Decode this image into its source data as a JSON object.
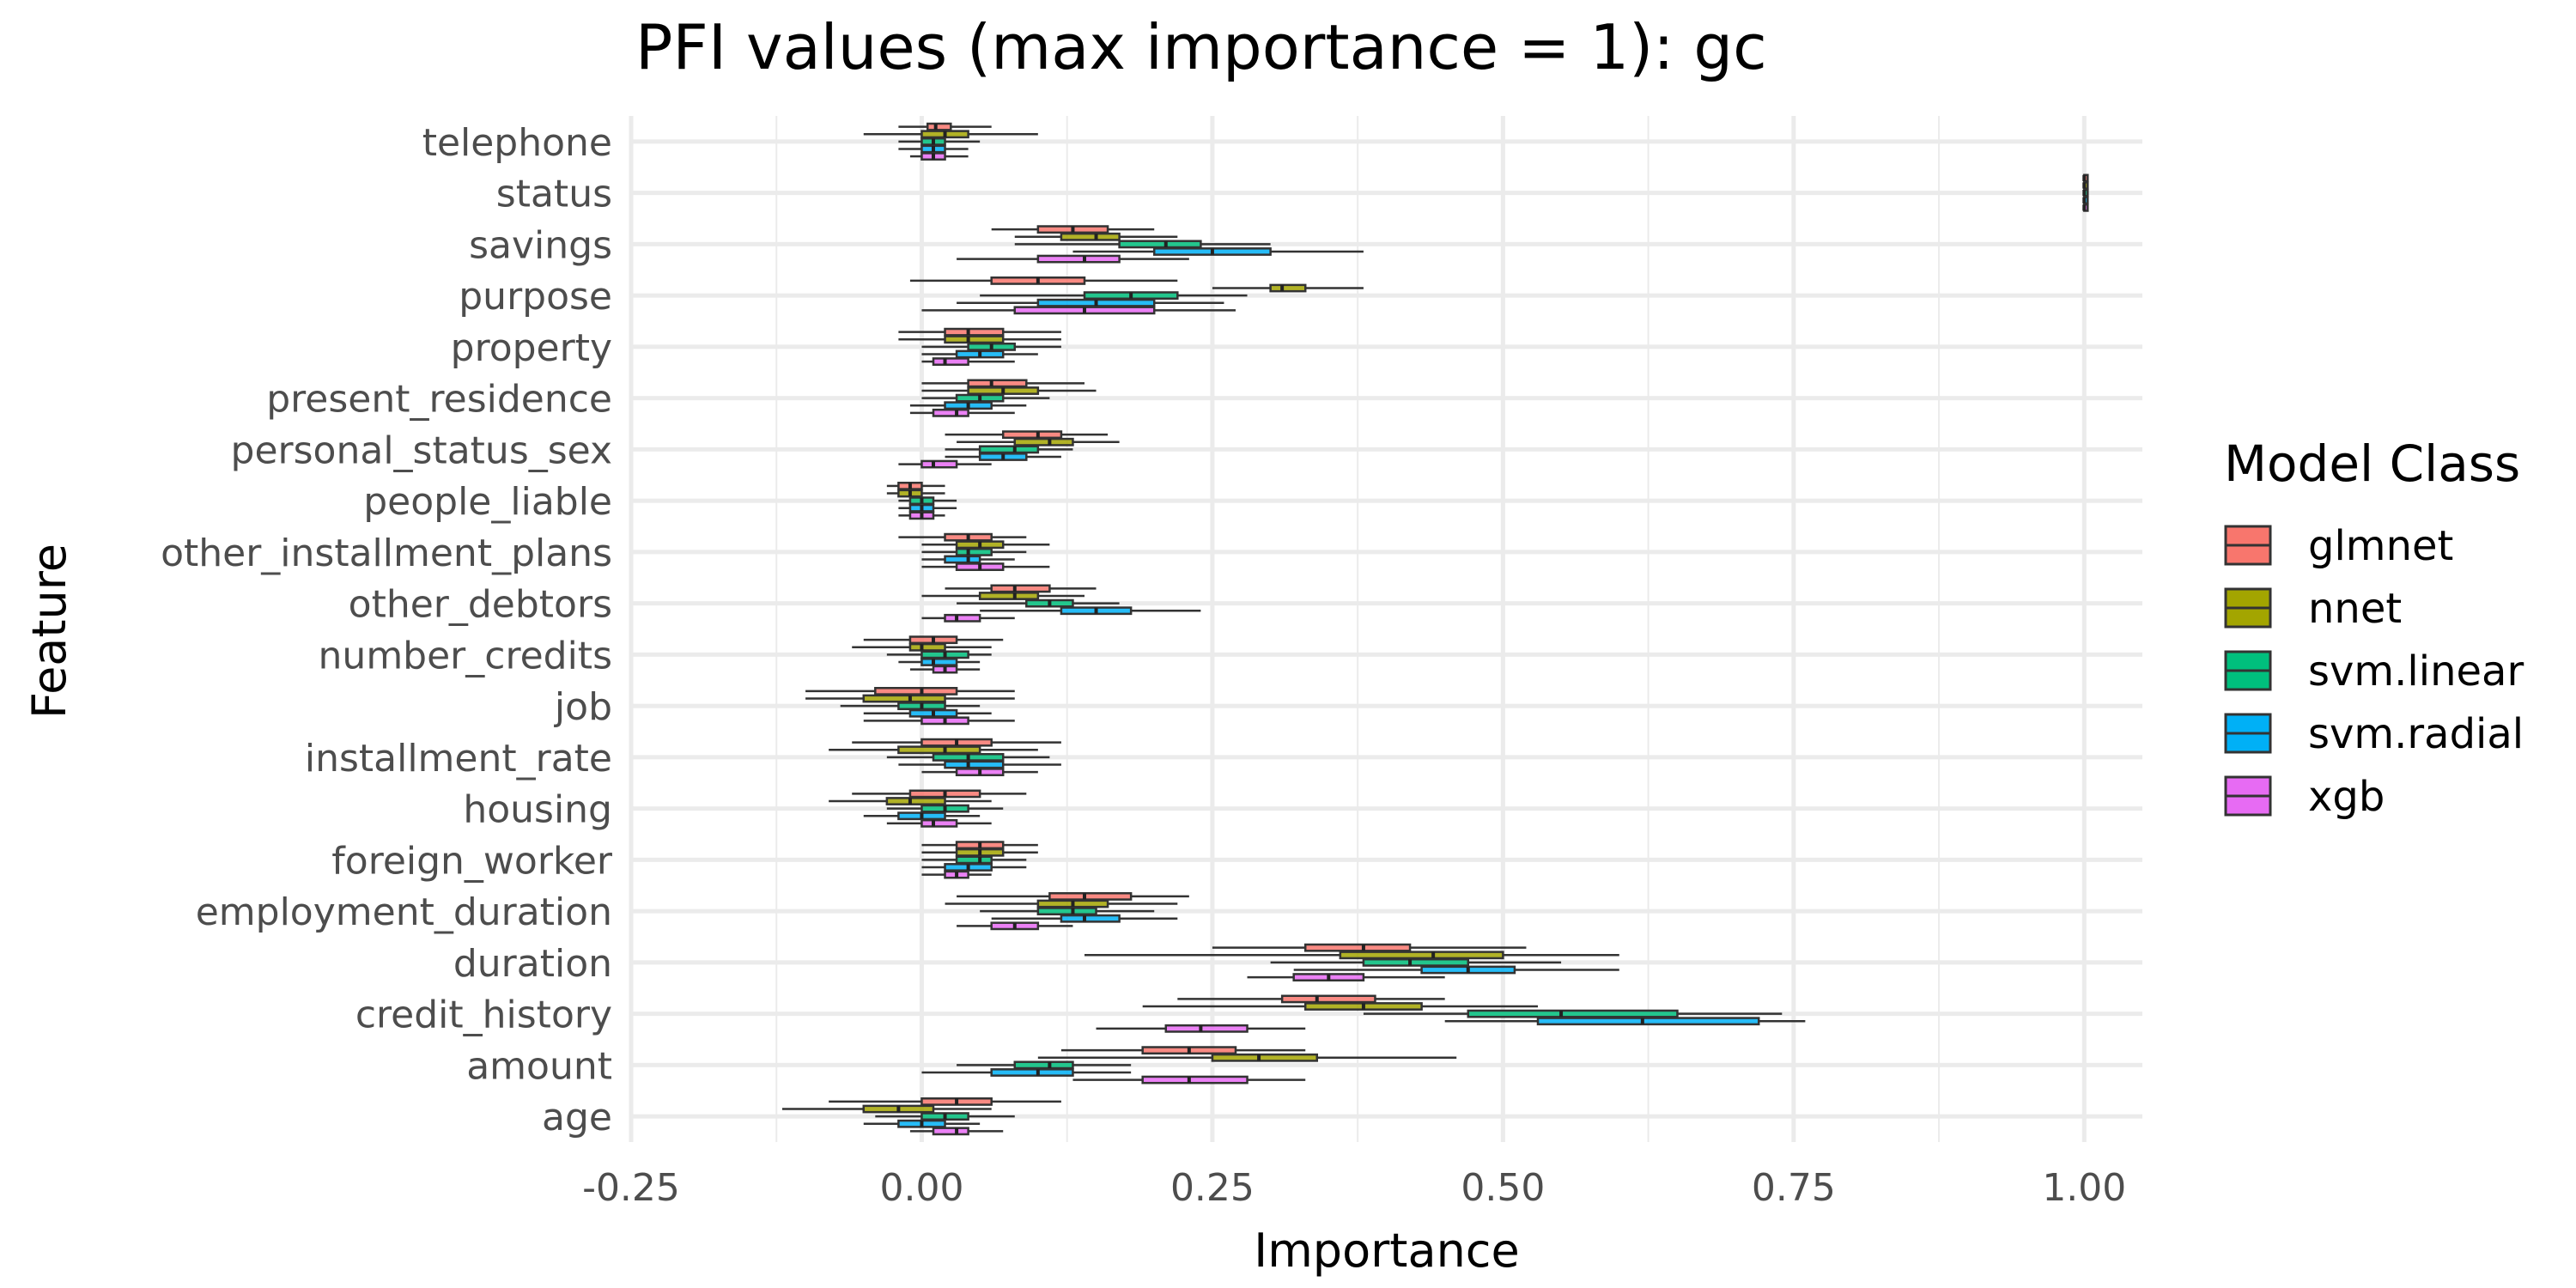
{
  "chart_data": {
    "type": "boxplot",
    "title": "PFI values (max importance = 1): gc",
    "xlabel": "Importance",
    "ylabel": "Feature",
    "xlim": [
      -0.25,
      1.05
    ],
    "x_ticks": [
      -0.25,
      0.0,
      0.25,
      0.5,
      0.75,
      1.0
    ],
    "x_tick_labels": [
      "-0.25",
      "0.00",
      "0.25",
      "0.50",
      "0.75",
      "1.00"
    ],
    "grid": true,
    "orientation": "horizontal",
    "legend": {
      "title": "Model Class",
      "position": "right",
      "entries": [
        {
          "name": "glmnet",
          "color": "#F8766D"
        },
        {
          "name": "nnet",
          "color": "#A3A500"
        },
        {
          "name": "svm.linear",
          "color": "#00BF7D"
        },
        {
          "name": "svm.radial",
          "color": "#00B0F6"
        },
        {
          "name": "xgb",
          "color": "#E76BF3"
        }
      ]
    },
    "categories": [
      "telephone",
      "status",
      "savings",
      "purpose",
      "property",
      "present_residence",
      "personal_status_sex",
      "people_liable",
      "other_installment_plans",
      "other_debtors",
      "number_credits",
      "job",
      "installment_rate",
      "housing",
      "foreign_worker",
      "employment_duration",
      "duration",
      "credit_history",
      "amount",
      "age"
    ],
    "series": [
      {
        "name": "glmnet",
        "boxes": [
          [
            -0.02,
            0.005,
            0.012,
            0.025,
            0.06
          ],
          [
            1.0,
            1.0,
            1.0,
            1.0,
            1.0
          ],
          [
            0.06,
            0.1,
            0.13,
            0.16,
            0.2
          ],
          [
            -0.01,
            0.06,
            0.1,
            0.14,
            0.22
          ],
          [
            -0.02,
            0.02,
            0.04,
            0.07,
            0.12
          ],
          [
            0.0,
            0.04,
            0.06,
            0.09,
            0.14
          ],
          [
            0.02,
            0.07,
            0.1,
            0.12,
            0.16
          ],
          [
            -0.03,
            -0.02,
            -0.01,
            0.0,
            0.02
          ],
          [
            -0.02,
            0.02,
            0.04,
            0.06,
            0.09
          ],
          [
            0.02,
            0.06,
            0.08,
            0.11,
            0.15
          ],
          [
            -0.05,
            -0.01,
            0.01,
            0.03,
            0.07
          ],
          [
            -0.1,
            -0.04,
            0.0,
            0.03,
            0.08
          ],
          [
            -0.06,
            0.0,
            0.03,
            0.06,
            0.12
          ],
          [
            -0.06,
            -0.01,
            0.02,
            0.05,
            0.09
          ],
          [
            0.0,
            0.03,
            0.05,
            0.07,
            0.1
          ],
          [
            0.03,
            0.11,
            0.14,
            0.18,
            0.23
          ],
          [
            0.25,
            0.33,
            0.38,
            0.42,
            0.52
          ],
          [
            0.22,
            0.31,
            0.34,
            0.39,
            0.45
          ],
          [
            0.12,
            0.19,
            0.23,
            0.27,
            0.33
          ],
          [
            -0.08,
            0.0,
            0.03,
            0.06,
            0.12
          ]
        ]
      },
      {
        "name": "nnet",
        "boxes": [
          [
            -0.05,
            0.0,
            0.02,
            0.04,
            0.1
          ],
          [
            1.0,
            1.0,
            1.0,
            1.0,
            1.0
          ],
          [
            0.08,
            0.12,
            0.15,
            0.17,
            0.22
          ],
          [
            0.25,
            0.3,
            0.31,
            0.33,
            0.38
          ],
          [
            -0.02,
            0.02,
            0.04,
            0.07,
            0.12
          ],
          [
            0.0,
            0.04,
            0.07,
            0.1,
            0.15
          ],
          [
            0.03,
            0.08,
            0.11,
            0.13,
            0.17
          ],
          [
            -0.03,
            -0.02,
            -0.01,
            0.0,
            0.02
          ],
          [
            0.0,
            0.03,
            0.05,
            0.07,
            0.11
          ],
          [
            0.0,
            0.05,
            0.08,
            0.1,
            0.14
          ],
          [
            -0.06,
            -0.01,
            0.0,
            0.02,
            0.06
          ],
          [
            -0.1,
            -0.05,
            -0.01,
            0.02,
            0.08
          ],
          [
            -0.08,
            -0.02,
            0.02,
            0.05,
            0.1
          ],
          [
            -0.08,
            -0.03,
            -0.01,
            0.02,
            0.06
          ],
          [
            0.0,
            0.03,
            0.05,
            0.07,
            0.1
          ],
          [
            0.02,
            0.1,
            0.13,
            0.16,
            0.22
          ],
          [
            0.14,
            0.36,
            0.44,
            0.5,
            0.6
          ],
          [
            0.19,
            0.33,
            0.38,
            0.43,
            0.53
          ],
          [
            0.1,
            0.25,
            0.29,
            0.34,
            0.46
          ],
          [
            -0.12,
            -0.05,
            -0.02,
            0.01,
            0.06
          ]
        ]
      },
      {
        "name": "svm.linear",
        "boxes": [
          [
            -0.02,
            0.0,
            0.01,
            0.02,
            0.05
          ],
          [
            1.0,
            1.0,
            1.0,
            1.0,
            1.0
          ],
          [
            0.08,
            0.17,
            0.21,
            0.24,
            0.3
          ],
          [
            0.05,
            0.14,
            0.18,
            0.22,
            0.28
          ],
          [
            0.0,
            0.04,
            0.06,
            0.08,
            0.12
          ],
          [
            0.0,
            0.03,
            0.05,
            0.07,
            0.11
          ],
          [
            0.02,
            0.05,
            0.08,
            0.1,
            0.13
          ],
          [
            -0.02,
            -0.01,
            0.0,
            0.01,
            0.03
          ],
          [
            0.0,
            0.03,
            0.04,
            0.06,
            0.09
          ],
          [
            0.03,
            0.09,
            0.11,
            0.13,
            0.17
          ],
          [
            -0.03,
            0.0,
            0.02,
            0.04,
            0.06
          ],
          [
            -0.07,
            -0.02,
            0.0,
            0.02,
            0.05
          ],
          [
            -0.03,
            0.01,
            0.04,
            0.07,
            0.11
          ],
          [
            -0.03,
            0.0,
            0.02,
            0.04,
            0.07
          ],
          [
            0.0,
            0.03,
            0.05,
            0.06,
            0.09
          ],
          [
            0.05,
            0.1,
            0.13,
            0.15,
            0.2
          ],
          [
            0.3,
            0.38,
            0.42,
            0.47,
            0.55
          ],
          [
            0.38,
            0.47,
            0.55,
            0.65,
            0.74
          ],
          [
            0.03,
            0.08,
            0.11,
            0.13,
            0.18
          ],
          [
            -0.04,
            0.0,
            0.02,
            0.04,
            0.08
          ]
        ]
      },
      {
        "name": "svm.radial",
        "boxes": [
          [
            -0.02,
            0.0,
            0.01,
            0.02,
            0.04
          ],
          [
            1.0,
            1.0,
            1.0,
            1.0,
            1.0
          ],
          [
            0.13,
            0.2,
            0.25,
            0.3,
            0.38
          ],
          [
            0.03,
            0.1,
            0.15,
            0.2,
            0.26
          ],
          [
            0.0,
            0.03,
            0.05,
            0.07,
            0.1
          ],
          [
            -0.01,
            0.02,
            0.04,
            0.06,
            0.09
          ],
          [
            0.02,
            0.05,
            0.07,
            0.09,
            0.12
          ],
          [
            -0.02,
            -0.01,
            0.0,
            0.01,
            0.03
          ],
          [
            0.0,
            0.02,
            0.04,
            0.05,
            0.08
          ],
          [
            0.05,
            0.12,
            0.15,
            0.18,
            0.24
          ],
          [
            -0.02,
            0.0,
            0.01,
            0.03,
            0.05
          ],
          [
            -0.05,
            -0.01,
            0.01,
            0.03,
            0.06
          ],
          [
            -0.02,
            0.02,
            0.04,
            0.07,
            0.12
          ],
          [
            -0.05,
            -0.02,
            0.0,
            0.02,
            0.05
          ],
          [
            0.0,
            0.02,
            0.04,
            0.06,
            0.09
          ],
          [
            0.06,
            0.12,
            0.14,
            0.17,
            0.22
          ],
          [
            0.32,
            0.43,
            0.47,
            0.51,
            0.6
          ],
          [
            0.45,
            0.53,
            0.62,
            0.72,
            0.76
          ],
          [
            0.0,
            0.06,
            0.1,
            0.13,
            0.18
          ],
          [
            -0.05,
            -0.02,
            0.0,
            0.02,
            0.05
          ]
        ]
      },
      {
        "name": "xgb",
        "boxes": [
          [
            -0.01,
            0.0,
            0.01,
            0.02,
            0.04
          ],
          [
            1.0,
            1.0,
            1.0,
            1.0,
            1.0
          ],
          [
            0.03,
            0.1,
            0.14,
            0.17,
            0.23
          ],
          [
            0.0,
            0.08,
            0.14,
            0.2,
            0.27
          ],
          [
            0.0,
            0.01,
            0.02,
            0.04,
            0.08
          ],
          [
            -0.01,
            0.01,
            0.03,
            0.04,
            0.08
          ],
          [
            -0.02,
            0.0,
            0.01,
            0.03,
            0.06
          ],
          [
            -0.02,
            -0.01,
            0.0,
            0.01,
            0.02
          ],
          [
            0.0,
            0.03,
            0.05,
            0.07,
            0.11
          ],
          [
            0.0,
            0.02,
            0.03,
            0.05,
            0.08
          ],
          [
            -0.01,
            0.01,
            0.02,
            0.03,
            0.05
          ],
          [
            -0.05,
            0.0,
            0.02,
            0.04,
            0.08
          ],
          [
            0.0,
            0.03,
            0.05,
            0.07,
            0.1
          ],
          [
            -0.03,
            0.0,
            0.01,
            0.03,
            0.06
          ],
          [
            0.0,
            0.02,
            0.03,
            0.04,
            0.06
          ],
          [
            0.03,
            0.06,
            0.08,
            0.1,
            0.13
          ],
          [
            0.28,
            0.32,
            0.35,
            0.38,
            0.45
          ],
          [
            0.15,
            0.21,
            0.24,
            0.28,
            0.33
          ],
          [
            0.13,
            0.19,
            0.23,
            0.28,
            0.33
          ],
          [
            -0.01,
            0.01,
            0.03,
            0.04,
            0.07
          ]
        ]
      }
    ]
  }
}
